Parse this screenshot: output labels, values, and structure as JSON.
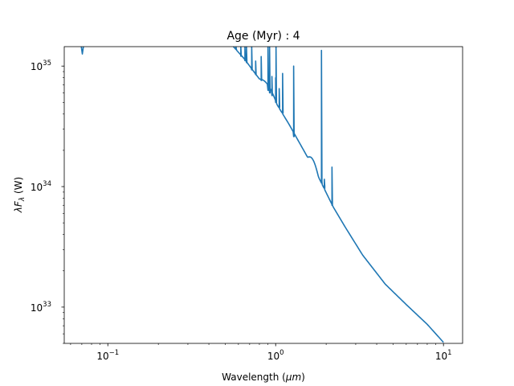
{
  "chart_data": {
    "type": "line",
    "title": "Age (Myr) : 4",
    "xlabel": "Wavelength (μm)",
    "ylabel": "λFλ (W)",
    "xscale": "log",
    "yscale": "log",
    "xlim": [
      0.055,
      13
    ],
    "ylim": [
      5e+32,
      1.45e+35
    ],
    "grid": false,
    "legend": "none",
    "color": "#1f77b4",
    "x_ticks": [
      {
        "value": 0.1,
        "base": "10",
        "exp": "−1"
      },
      {
        "value": 1,
        "base": "10",
        "exp": "0"
      },
      {
        "value": 10,
        "base": "10",
        "exp": "1"
      }
    ],
    "y_ticks": [
      {
        "value": 1e+33,
        "base": "10",
        "exp": "33"
      },
      {
        "value": 1e+34,
        "base": "10",
        "exp": "34"
      },
      {
        "value": 1e+35,
        "base": "10",
        "exp": "35"
      }
    ],
    "series": [
      {
        "continuum": [
          [
            0.56,
            1.45e+35
          ],
          [
            0.65,
            1.15e+35
          ],
          [
            0.75,
            8.8e+34
          ],
          [
            0.85,
            7e+34
          ],
          [
            1.0,
            5e+34
          ],
          [
            1.2,
            3.3e+34
          ],
          [
            1.5,
            1.9e+34
          ],
          [
            1.8,
            1.2e+34
          ],
          [
            2.2,
            6.8e+33
          ],
          [
            2.6,
            4.6e+33
          ],
          [
            3.3,
            2.7e+33
          ],
          [
            4.5,
            1.55e+33
          ],
          [
            6.0,
            1.05e+33
          ],
          [
            8.0,
            7.2e+32
          ],
          [
            10.0,
            5.1e+32
          ]
        ],
        "blue_edge": [
          [
            0.0695,
            1.45e+35
          ],
          [
            0.0705,
            1.26e+35
          ],
          [
            0.0715,
            1.45e+35
          ]
        ],
        "lines": [
          {
            "x": 0.58,
            "base": 1.38e+35,
            "peak": 1.45e+35
          },
          {
            "x": 0.62,
            "base": 1.21e+35,
            "peak": 1.45e+35
          },
          {
            "x": 0.656,
            "base": 1.11e+35,
            "peak": 1.45e+35
          },
          {
            "x": 0.67,
            "base": 1.07e+35,
            "peak": 1.45e+35
          },
          {
            "x": 0.72,
            "base": 9.3e+34,
            "peak": 1.45e+35
          },
          {
            "x": 0.76,
            "base": 8.5e+34,
            "peak": 1.1e+35
          },
          {
            "x": 0.82,
            "base": 7.6e+34,
            "peak": 1.2e+35
          },
          {
            "x": 0.9,
            "base": 6.3e+34,
            "peak": 1.45e+35
          },
          {
            "x": 0.92,
            "base": 6e+34,
            "peak": 1.45e+35
          },
          {
            "x": 0.95,
            "base": 5.7e+34,
            "peak": 8.2e+34
          },
          {
            "x": 1.0,
            "base": 5e+34,
            "peak": 8e+34
          },
          {
            "x": 1.005,
            "base": 5e+34,
            "peak": 1.45e+35
          },
          {
            "x": 1.05,
            "base": 4.6e+34,
            "peak": 6.5e+34
          },
          {
            "x": 1.1,
            "base": 4.1e+34,
            "peak": 8.7e+34
          },
          {
            "x": 1.28,
            "base": 2.6e+34,
            "peak": 1e+35
          },
          {
            "x": 1.875,
            "base": 1.1e+34,
            "peak": 1.35e+35
          },
          {
            "x": 1.95,
            "base": 1e+34,
            "peak": 1.15e+34
          },
          {
            "x": 2.166,
            "base": 7e+33,
            "peak": 1.45e+34
          }
        ],
        "bumps": [
          {
            "from": 0.8,
            "to": 1.02,
            "level": 1.12
          },
          {
            "from": 1.55,
            "to": 1.8,
            "level": 1.15
          }
        ]
      }
    ]
  }
}
